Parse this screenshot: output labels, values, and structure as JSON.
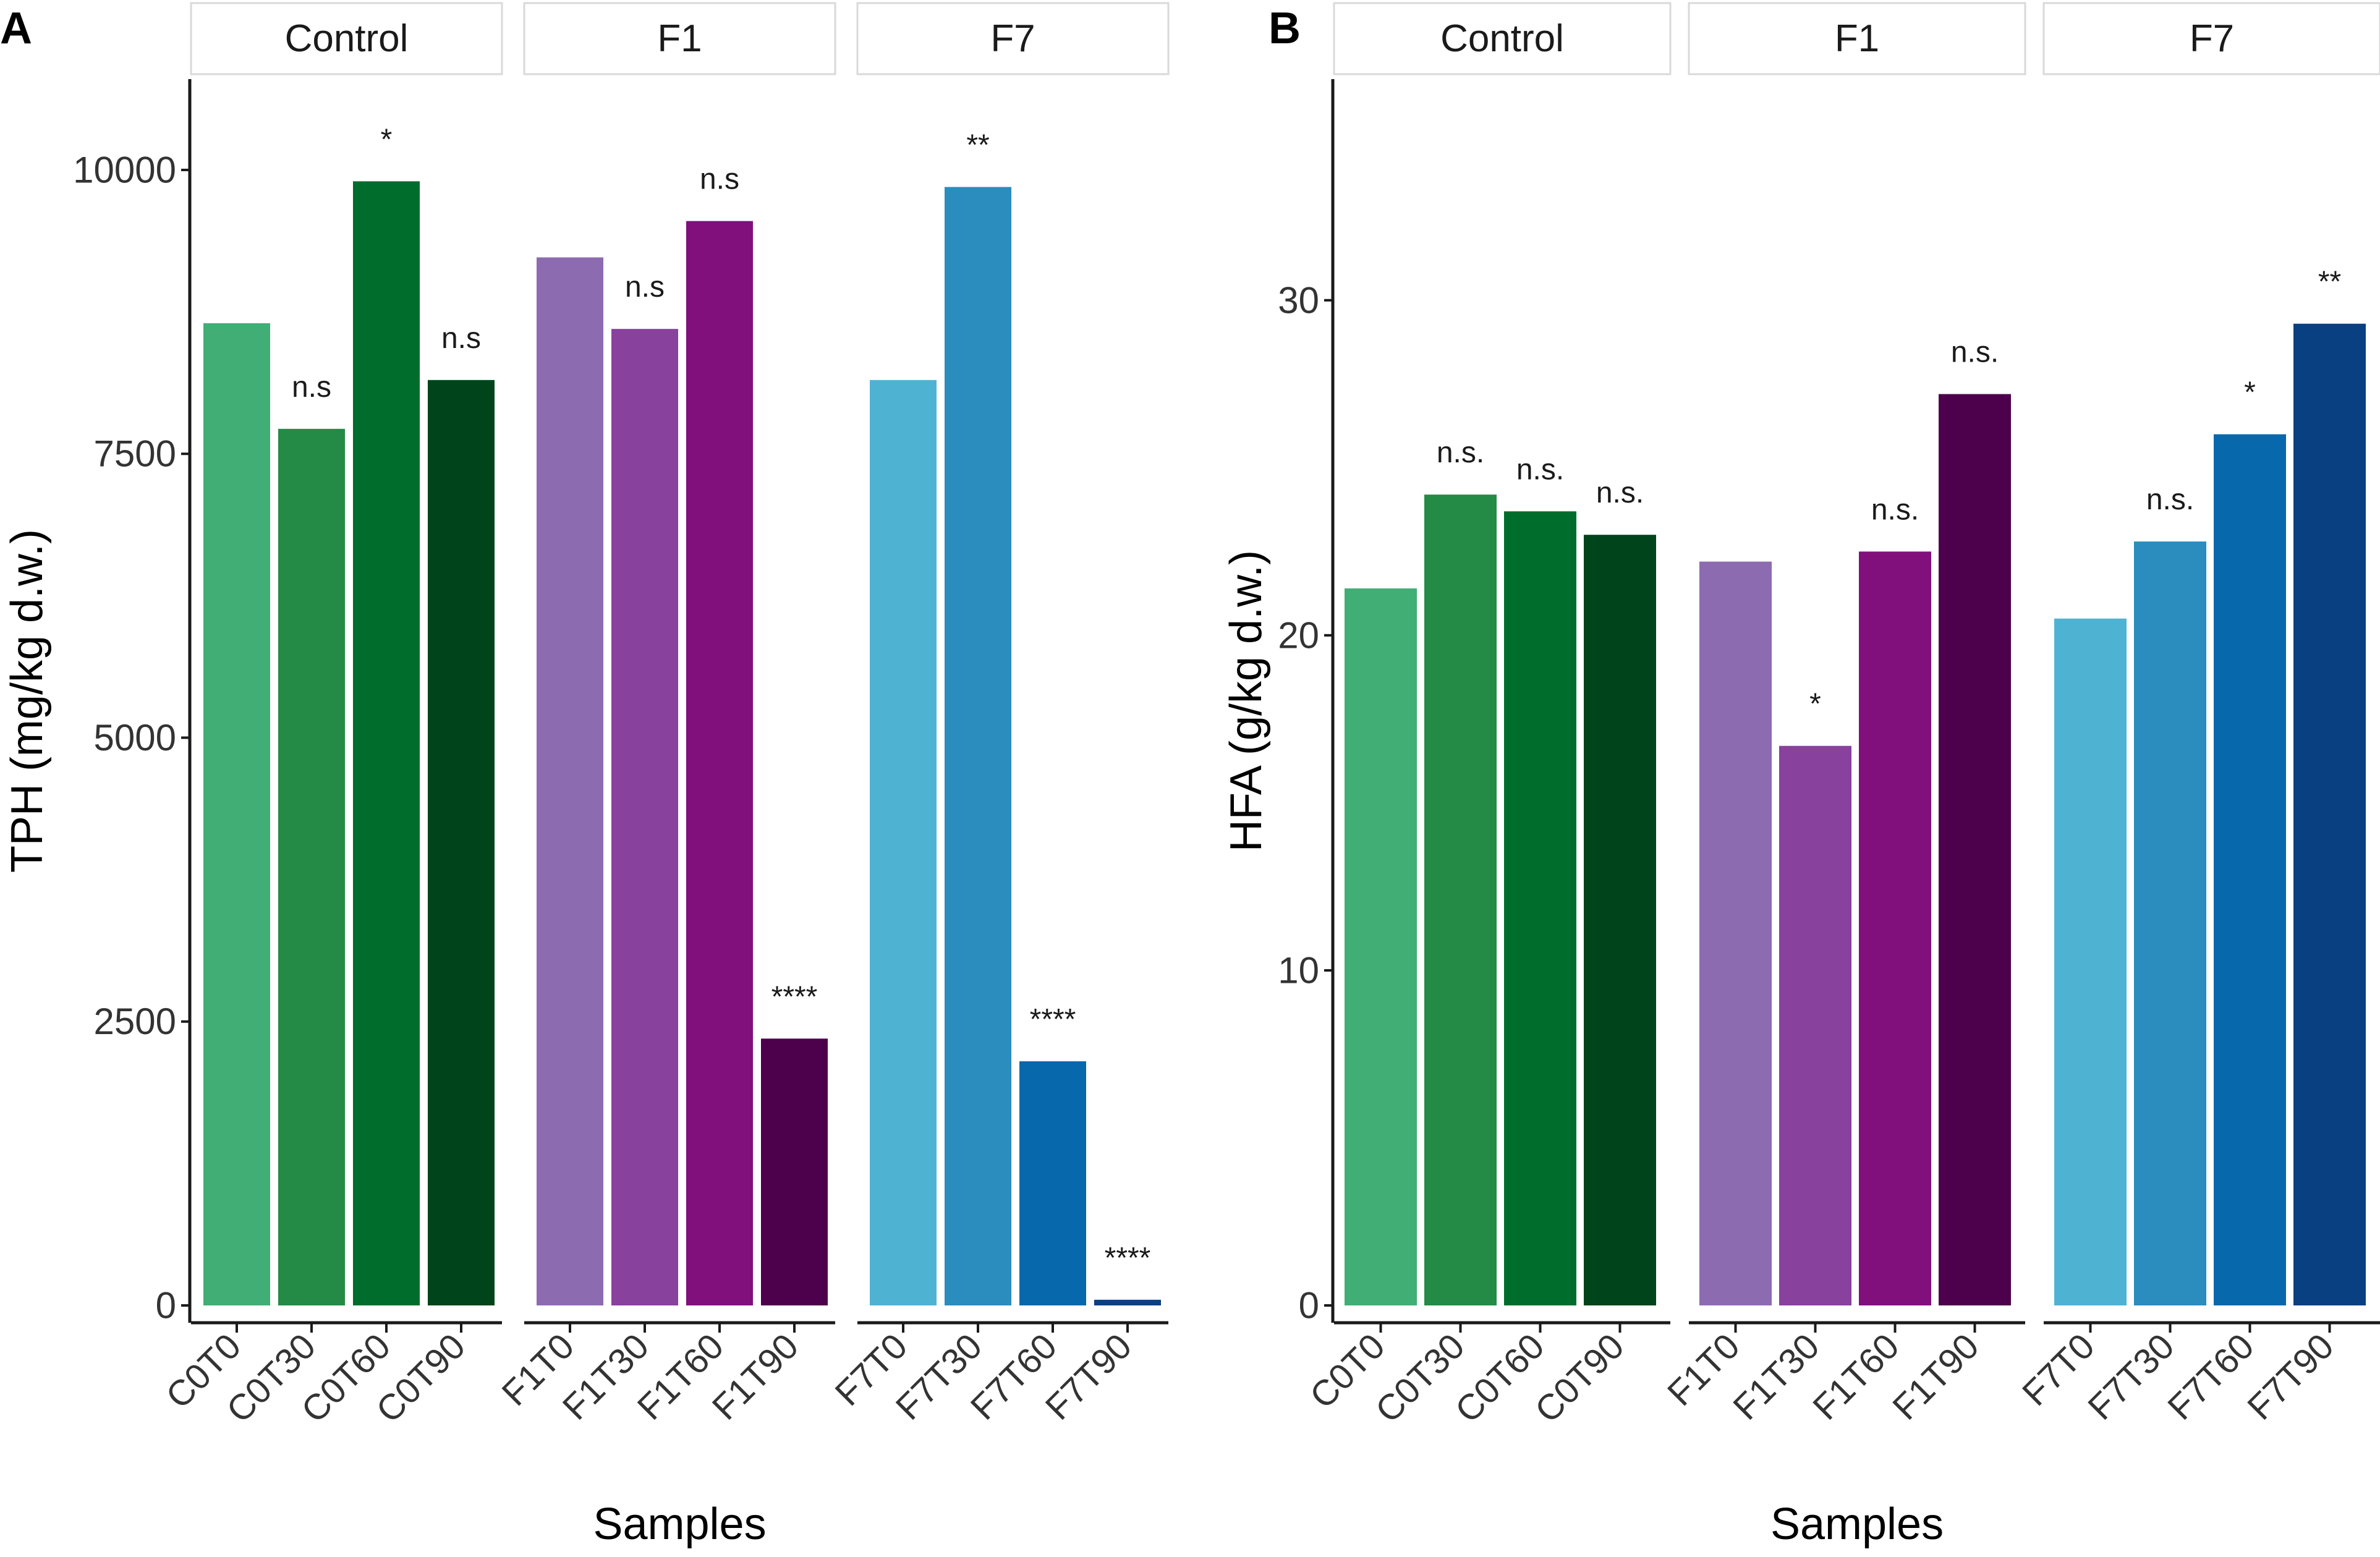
{
  "chart_data": [
    {
      "type": "bar",
      "panel_label": "A",
      "xlabel": "Samples",
      "ylabel": "TPH (mg/kg d.w.)",
      "ylim": [
        0,
        10800
      ],
      "yticks": [
        0,
        2500,
        5000,
        7500,
        10000
      ],
      "ytick_labels": [
        "0",
        "2500",
        "5000",
        "7500",
        "10000"
      ],
      "facets": [
        {
          "strip": "Control",
          "categories": [
            "C0T0",
            "C0T30",
            "C0T60",
            "C0T90"
          ],
          "values": [
            8650,
            7720,
            9900,
            8150
          ],
          "colors": [
            "#41ae76",
            "#238b45",
            "#006d2c",
            "#00441b"
          ],
          "significance": [
            "",
            "n.s",
            "*",
            "n.s"
          ]
        },
        {
          "strip": "F1",
          "categories": [
            "F1T0",
            "F1T30",
            "F1T60",
            "F1T90"
          ],
          "values": [
            9230,
            8600,
            9550,
            2350
          ],
          "colors": [
            "#8c6bb1",
            "#88419d",
            "#810f7c",
            "#4d004b"
          ],
          "significance": [
            "",
            "n.s",
            "n.s",
            "****"
          ]
        },
        {
          "strip": "F7",
          "categories": [
            "F7T0",
            "F7T30",
            "F7T60",
            "F7T90"
          ],
          "values": [
            8150,
            9850,
            2150,
            50
          ],
          "colors": [
            "#4eb3d3",
            "#2b8cbe",
            "#0868ac",
            "#084081"
          ],
          "significance": [
            "",
            "**",
            "****",
            "****"
          ]
        }
      ]
    },
    {
      "type": "bar",
      "panel_label": "B",
      "xlabel": "Samples",
      "ylabel": "HFA (g/kg d.w.)",
      "ylim": [
        0,
        36.6
      ],
      "yticks": [
        0,
        10,
        20,
        30
      ],
      "ytick_labels": [
        "0",
        "10",
        "20",
        "30"
      ],
      "facets": [
        {
          "strip": "Control",
          "categories": [
            "C0T0",
            "C0T30",
            "C0T60",
            "C0T90"
          ],
          "values": [
            21.4,
            24.2,
            23.7,
            23.0
          ],
          "colors": [
            "#41ae76",
            "#238b45",
            "#006d2c",
            "#00441b"
          ],
          "significance": [
            "",
            "n.s.",
            "n.s.",
            "n.s."
          ]
        },
        {
          "strip": "F1",
          "categories": [
            "F1T0",
            "F1T30",
            "F1T60",
            "F1T90"
          ],
          "values": [
            22.2,
            16.7,
            22.5,
            27.2
          ],
          "colors": [
            "#8c6bb1",
            "#88419d",
            "#810f7c",
            "#4d004b"
          ],
          "significance": [
            "",
            "*",
            "n.s.",
            "n.s."
          ]
        },
        {
          "strip": "F7",
          "categories": [
            "F7T0",
            "F7T30",
            "F7T60",
            "F7T90"
          ],
          "values": [
            20.5,
            22.8,
            26.0,
            29.3
          ],
          "colors": [
            "#4eb3d3",
            "#2b8cbe",
            "#0868ac",
            "#084081"
          ],
          "significance": [
            "",
            "n.s.",
            "*",
            "**"
          ]
        }
      ]
    }
  ]
}
